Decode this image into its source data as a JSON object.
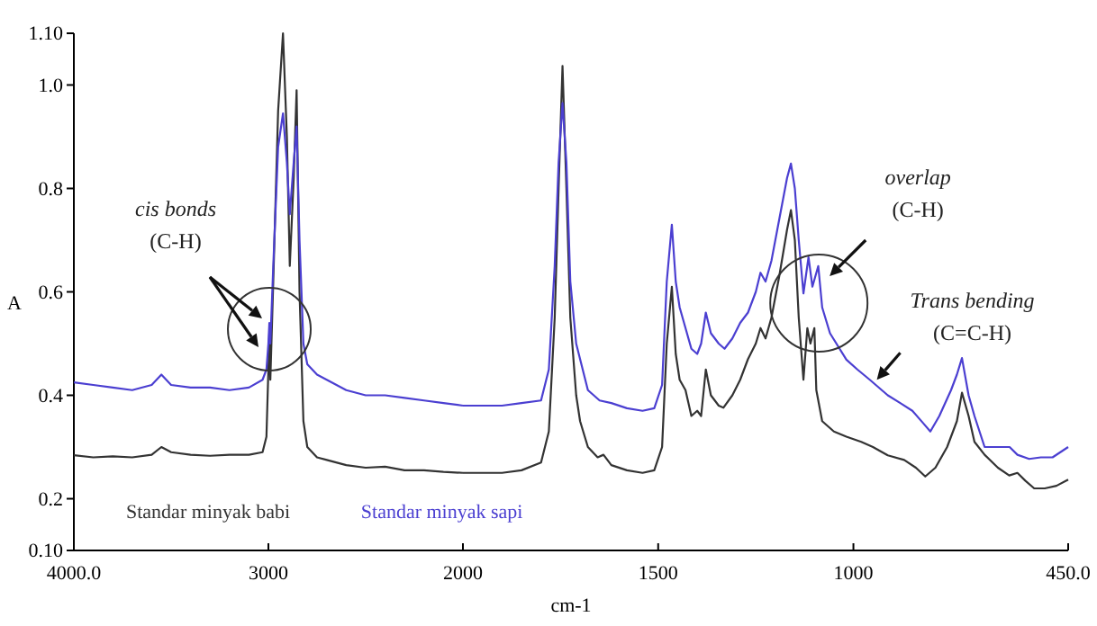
{
  "chart_data": [
    {
      "type": "line",
      "ylabel": "A",
      "xlim": [
        4000,
        2000
      ],
      "xticks": [
        {
          "value": 4000,
          "label": "4000.0"
        },
        3000,
        2000
      ],
      "ylim": [
        0.1,
        1.1
      ],
      "yticks": [
        {
          "value": 0.1,
          "label": "0.10"
        },
        0.2,
        0.4,
        0.6,
        0.8,
        {
          "value": 1.0,
          "label": "1.0"
        },
        {
          "value": 1.1,
          "label": "1.10"
        }
      ],
      "grid": false,
      "legend": "bottom",
      "marker": "none",
      "line_style": "solid",
      "annotations": [
        "cis bonds (C-H)"
      ],
      "series": [
        {
          "name": "Standar minyak babi",
          "color": "#333333",
          "x": [
            4000,
            3900,
            3800,
            3700,
            3600,
            3550,
            3500,
            3400,
            3300,
            3200,
            3100,
            3030,
            3010,
            3000,
            2995,
            2990,
            2975,
            2950,
            2925,
            2905,
            2890,
            2870,
            2855,
            2840,
            2820,
            2800,
            2750,
            2700,
            2600,
            2500,
            2400,
            2300,
            2200,
            2100,
            2000
          ],
          "values": [
            0.284,
            0.28,
            0.282,
            0.28,
            0.285,
            0.3,
            0.29,
            0.285,
            0.283,
            0.285,
            0.285,
            0.29,
            0.32,
            0.45,
            0.52,
            0.43,
            0.62,
            0.95,
            1.1,
            0.9,
            0.65,
            0.82,
            0.99,
            0.6,
            0.35,
            0.3,
            0.28,
            0.275,
            0.265,
            0.26,
            0.262,
            0.255,
            0.255,
            0.252,
            0.25
          ]
        },
        {
          "name": "Standar minyak sapi",
          "color": "#4b3fd1",
          "x": [
            4000,
            3900,
            3800,
            3700,
            3600,
            3550,
            3500,
            3400,
            3300,
            3200,
            3100,
            3030,
            3010,
            3000,
            2995,
            2990,
            2975,
            2950,
            2925,
            2905,
            2890,
            2870,
            2855,
            2840,
            2820,
            2800,
            2750,
            2700,
            2600,
            2500,
            2400,
            2300,
            2200,
            2100,
            2000
          ],
          "values": [
            0.425,
            0.42,
            0.415,
            0.41,
            0.42,
            0.44,
            0.42,
            0.415,
            0.415,
            0.41,
            0.415,
            0.43,
            0.45,
            0.5,
            0.54,
            0.5,
            0.65,
            0.88,
            0.945,
            0.85,
            0.75,
            0.85,
            0.92,
            0.7,
            0.5,
            0.46,
            0.44,
            0.43,
            0.41,
            0.4,
            0.4,
            0.395,
            0.39,
            0.385,
            0.38
          ]
        }
      ]
    },
    {
      "type": "line",
      "xlabel": "cm-1",
      "xlim": [
        2000,
        450
      ],
      "xticks": [
        1500,
        1000,
        {
          "value": 450,
          "label": "450.0"
        }
      ],
      "ylim": [
        0.1,
        1.1
      ],
      "tick_labels": "x",
      "grid": false,
      "marker": "none",
      "line_style": "solid",
      "annotations": [
        "overlap (C-H)",
        {
          "text": "Trans bending (C=C-H)",
          "x": 940,
          "y": 0.43
        }
      ],
      "series": [
        {
          "color": "#333333",
          "x": [
            2000,
            1900,
            1850,
            1800,
            1780,
            1765,
            1755,
            1745,
            1735,
            1725,
            1710,
            1700,
            1680,
            1655,
            1640,
            1620,
            1580,
            1540,
            1510,
            1490,
            1478,
            1465,
            1455,
            1445,
            1430,
            1415,
            1400,
            1390,
            1378,
            1365,
            1345,
            1333,
            1310,
            1290,
            1270,
            1250,
            1238,
            1225,
            1210,
            1190,
            1170,
            1160,
            1150,
            1140,
            1128,
            1118,
            1110,
            1100,
            1095,
            1080,
            1050,
            1018,
            980,
            950,
            912,
            870,
            840,
            816,
            790,
            760,
            735,
            722,
            705,
            690,
            664,
            630,
            601,
            580,
            560,
            537,
            510,
            480,
            450
          ],
          "values": [
            0.25,
            0.25,
            0.255,
            0.27,
            0.33,
            0.55,
            0.8,
            1.037,
            0.8,
            0.55,
            0.4,
            0.35,
            0.3,
            0.28,
            0.285,
            0.265,
            0.255,
            0.25,
            0.255,
            0.3,
            0.5,
            0.61,
            0.48,
            0.43,
            0.41,
            0.36,
            0.37,
            0.36,
            0.45,
            0.4,
            0.38,
            0.376,
            0.4,
            0.43,
            0.47,
            0.5,
            0.53,
            0.51,
            0.55,
            0.63,
            0.72,
            0.758,
            0.7,
            0.55,
            0.43,
            0.53,
            0.5,
            0.53,
            0.41,
            0.35,
            0.33,
            0.32,
            0.31,
            0.3,
            0.284,
            0.275,
            0.26,
            0.243,
            0.26,
            0.3,
            0.35,
            0.405,
            0.36,
            0.31,
            0.285,
            0.26,
            0.245,
            0.25,
            0.235,
            0.22,
            0.22,
            0.225,
            0.237
          ]
        },
        {
          "color": "#4b3fd1",
          "x": [
            2000,
            1900,
            1850,
            1800,
            1780,
            1765,
            1755,
            1745,
            1735,
            1725,
            1710,
            1700,
            1680,
            1650,
            1620,
            1580,
            1540,
            1510,
            1490,
            1478,
            1465,
            1455,
            1445,
            1430,
            1415,
            1400,
            1390,
            1378,
            1365,
            1345,
            1330,
            1310,
            1290,
            1270,
            1250,
            1238,
            1225,
            1210,
            1190,
            1170,
            1160,
            1150,
            1140,
            1128,
            1115,
            1105,
            1090,
            1080,
            1060,
            1018,
            990,
            958,
            912,
            880,
            849,
            820,
            803,
            780,
            750,
            735,
            722,
            705,
            690,
            664,
            630,
            600,
            580,
            550,
            520,
            490,
            470,
            450
          ],
          "values": [
            0.38,
            0.38,
            0.385,
            0.39,
            0.45,
            0.65,
            0.85,
            0.965,
            0.85,
            0.62,
            0.5,
            0.47,
            0.41,
            0.39,
            0.385,
            0.375,
            0.37,
            0.375,
            0.42,
            0.62,
            0.73,
            0.62,
            0.57,
            0.53,
            0.49,
            0.48,
            0.5,
            0.56,
            0.52,
            0.5,
            0.49,
            0.51,
            0.54,
            0.56,
            0.6,
            0.637,
            0.62,
            0.66,
            0.74,
            0.82,
            0.848,
            0.8,
            0.7,
            0.597,
            0.667,
            0.61,
            0.65,
            0.57,
            0.52,
            0.469,
            0.45,
            0.43,
            0.4,
            0.385,
            0.37,
            0.345,
            0.33,
            0.36,
            0.41,
            0.44,
            0.472,
            0.4,
            0.36,
            0.3,
            0.3,
            0.3,
            0.285,
            0.277,
            0.28,
            0.28,
            0.29,
            0.3
          ]
        }
      ]
    }
  ]
}
